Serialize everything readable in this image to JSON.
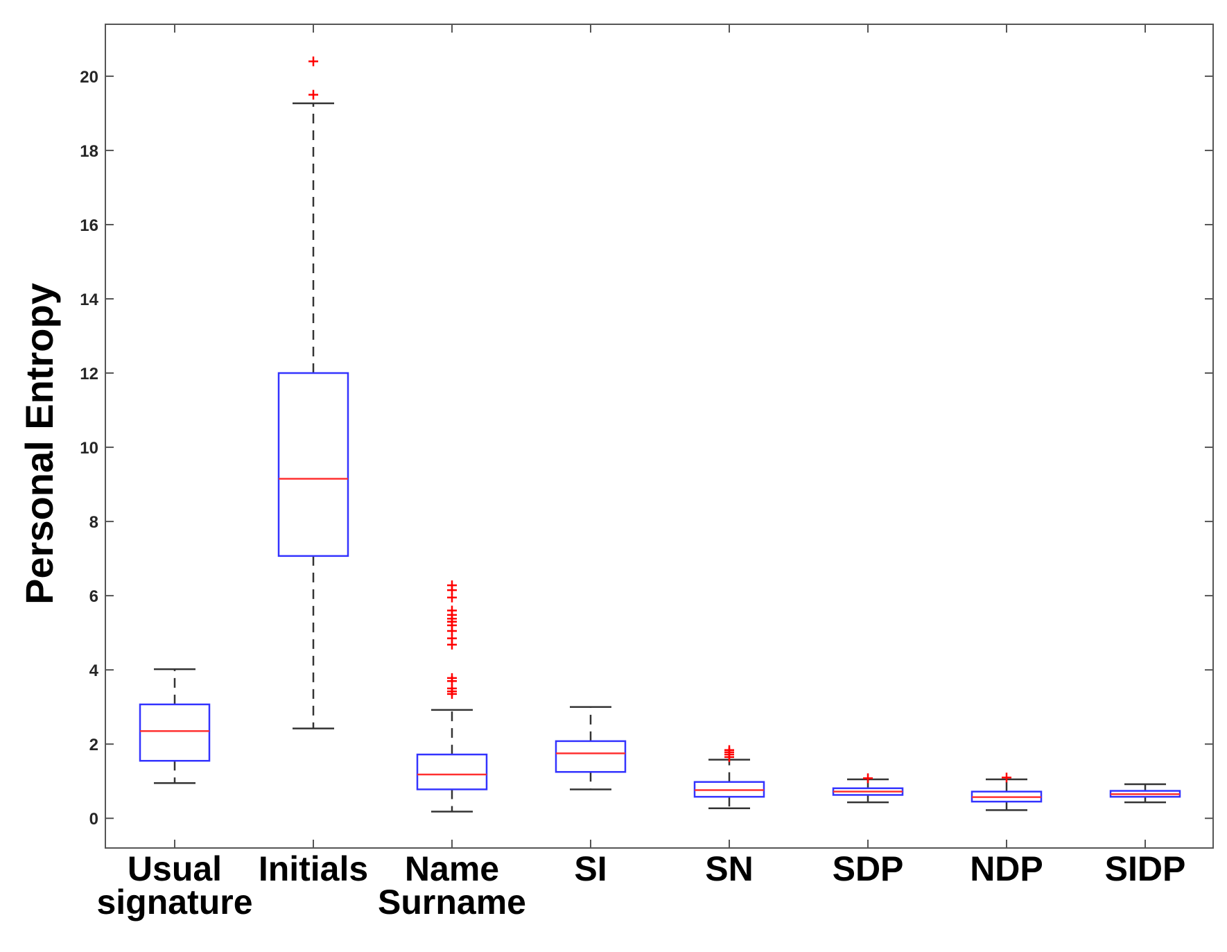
{
  "chart_data": {
    "type": "boxplot",
    "title": "",
    "xlabel": "",
    "ylabel": "Personal Entropy",
    "ylim": [
      -0.8,
      21.4
    ],
    "yticks": [
      0,
      2,
      4,
      6,
      8,
      10,
      12,
      14,
      16,
      18,
      20
    ],
    "ytick_labels": [
      "0",
      "2",
      "4",
      "6",
      "8",
      "10",
      "12",
      "14",
      "16",
      "18",
      "20"
    ],
    "grid": false,
    "colors": {
      "box": "#3333ff",
      "median": "#ff3030",
      "whisker": "#333333",
      "outlier": "#ff0000",
      "axis": "#555555"
    },
    "categories": [
      {
        "label_lines": [
          "Usual",
          "signature"
        ],
        "whisker_low": 0.95,
        "q1": 1.55,
        "median": 2.35,
        "q3": 3.07,
        "whisker_high": 4.02,
        "outliers": []
      },
      {
        "label_lines": [
          "Initials"
        ],
        "whisker_low": 2.42,
        "q1": 7.07,
        "median": 9.15,
        "q3": 12.0,
        "whisker_high": 19.27,
        "outliers": [
          19.5,
          20.4
        ]
      },
      {
        "label_lines": [
          "Name",
          "Surname"
        ],
        "whisker_low": 0.18,
        "q1": 0.78,
        "median": 1.18,
        "q3": 1.72,
        "whisker_high": 2.92,
        "outliers": [
          3.35,
          3.42,
          3.5,
          3.7,
          3.78,
          4.68,
          4.85,
          5.05,
          5.2,
          5.3,
          5.38,
          5.48,
          5.6,
          5.95,
          6.15,
          6.28
        ]
      },
      {
        "label_lines": [
          "SI"
        ],
        "whisker_low": 0.78,
        "q1": 1.25,
        "median": 1.75,
        "q3": 2.08,
        "whisker_high": 3.0,
        "outliers": []
      },
      {
        "label_lines": [
          "SN"
        ],
        "whisker_low": 0.27,
        "q1": 0.58,
        "median": 0.76,
        "q3": 0.98,
        "whisker_high": 1.58,
        "outliers": [
          1.65,
          1.72,
          1.78,
          1.84
        ]
      },
      {
        "label_lines": [
          "SDP"
        ],
        "whisker_low": 0.43,
        "q1": 0.63,
        "median": 0.72,
        "q3": 0.81,
        "whisker_high": 1.05,
        "outliers": [
          1.08
        ]
      },
      {
        "label_lines": [
          "NDP"
        ],
        "whisker_low": 0.22,
        "q1": 0.45,
        "median": 0.57,
        "q3": 0.72,
        "whisker_high": 1.05,
        "outliers": [
          1.1
        ]
      },
      {
        "label_lines": [
          "SIDP"
        ],
        "whisker_low": 0.43,
        "q1": 0.58,
        "median": 0.65,
        "q3": 0.74,
        "whisker_high": 0.92,
        "outliers": []
      }
    ]
  }
}
